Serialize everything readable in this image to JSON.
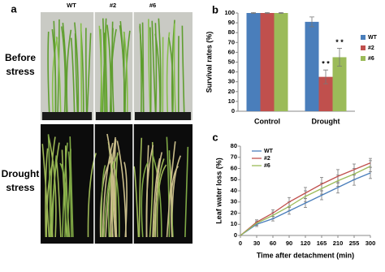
{
  "panel_a": {
    "label": "a",
    "columns": [
      "WT",
      "#2",
      "#6"
    ],
    "row_labels": [
      [
        "Before",
        "stress"
      ],
      [
        "Drought",
        "stress"
      ]
    ]
  },
  "chart_data": [
    {
      "type": "bar",
      "panel_label": "b",
      "y_label": "Survival rates (%)",
      "categories": [
        "Control",
        "Drought"
      ],
      "series": [
        {
          "name": "WT",
          "color": "#4a7ebb",
          "values": [
            100,
            91
          ],
          "errors": [
            0.5,
            5
          ]
        },
        {
          "name": "#2",
          "color": "#c0504d",
          "values": [
            100,
            35
          ],
          "errors": [
            0.5,
            7
          ]
        },
        {
          "name": "#6",
          "color": "#9bbb59",
          "values": [
            100,
            55
          ],
          "errors": [
            0.5,
            9
          ]
        }
      ],
      "annotations": [
        "* *",
        "* *"
      ],
      "ylim": [
        0,
        100
      ],
      "yticks": [
        0,
        10,
        20,
        30,
        40,
        50,
        60,
        70,
        80,
        90,
        100
      ],
      "grid": false,
      "legend": "right"
    },
    {
      "type": "line",
      "panel_label": "c",
      "y_label": "Leaf water loss (%)",
      "x_label": "Time after detachment (min)",
      "categories": [
        "0",
        "30",
        "60",
        "90",
        "120",
        "165",
        "210",
        "255",
        "300"
      ],
      "series": [
        {
          "name": "WT",
          "color": "#4a7ebb",
          "values": [
            0,
            10,
            15,
            22,
            29,
            36,
            43,
            50,
            56
          ],
          "errors": [
            0,
            2,
            2,
            3,
            4,
            4,
            5,
            5,
            5
          ]
        },
        {
          "name": "#2",
          "color": "#c0504d",
          "values": [
            0,
            12,
            20,
            30,
            38,
            46,
            53,
            59,
            65
          ],
          "errors": [
            0,
            2,
            3,
            4,
            5,
            6,
            6,
            5,
            4
          ]
        },
        {
          "name": "#6",
          "color": "#9bbb59",
          "values": [
            0,
            11,
            18,
            26,
            35,
            42,
            49,
            55,
            62
          ],
          "errors": [
            0,
            2,
            3,
            4,
            5,
            5,
            5,
            5,
            5
          ]
        }
      ],
      "ylim": [
        0,
        80
      ],
      "yticks": [
        0,
        10,
        20,
        30,
        40,
        50,
        60,
        70,
        80
      ],
      "grid": false,
      "legend": "upper left"
    }
  ]
}
